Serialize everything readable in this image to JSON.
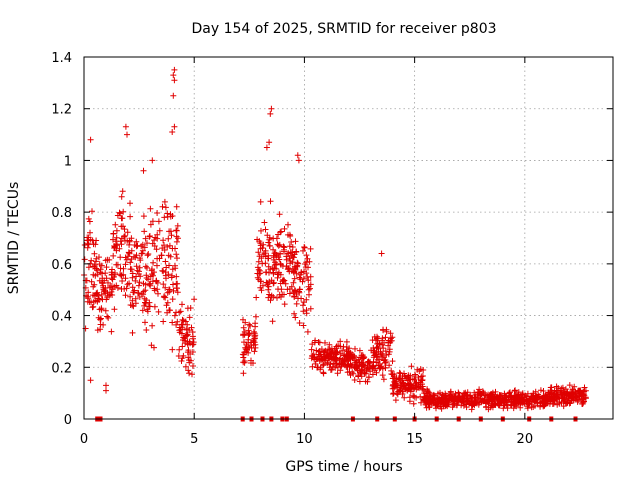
{
  "chart_data": {
    "type": "scatter",
    "title": "Day 154 of 2025, SRMTID for receiver p803",
    "xlabel": "GPS time / hours",
    "ylabel": "SRMTID / TECUs",
    "xlim": [
      0,
      24
    ],
    "ylim": [
      0,
      1.4
    ],
    "xticks": [
      0,
      5,
      10,
      15,
      20
    ],
    "xtick_labels": [
      "0",
      "5",
      "10",
      "15",
      "20"
    ],
    "yticks": [
      0,
      0.2,
      0.4,
      0.6,
      0.8,
      1,
      1.2,
      1.4
    ],
    "ytick_labels": [
      "0",
      "0.2",
      "0.4",
      "0.6",
      "0.8",
      "1",
      "1.2",
      "1.4"
    ],
    "grid": true,
    "series_color": "#e00000",
    "marker": "plus",
    "segments": [
      {
        "t0": 0.0,
        "t1": 0.6,
        "lo": 0.28,
        "hi": 0.85,
        "note": "dense scatter"
      },
      {
        "t0": 0.6,
        "t1": 1.3,
        "lo": 0.3,
        "hi": 0.7
      },
      {
        "t0": 1.3,
        "t1": 2.1,
        "lo": 0.32,
        "hi": 0.95
      },
      {
        "t0": 2.1,
        "t1": 3.2,
        "lo": 0.2,
        "hi": 0.9
      },
      {
        "t0": 3.2,
        "t1": 4.3,
        "lo": 0.25,
        "hi": 0.95
      },
      {
        "t0": 4.3,
        "t1": 5.0,
        "lo": 0.12,
        "hi": 0.5
      },
      {
        "t0": 7.2,
        "t1": 7.8,
        "lo": 0.15,
        "hi": 0.45
      },
      {
        "t0": 7.8,
        "t1": 8.6,
        "lo": 0.3,
        "hi": 0.9
      },
      {
        "t0": 8.6,
        "t1": 9.5,
        "lo": 0.35,
        "hi": 0.85
      },
      {
        "t0": 9.5,
        "t1": 10.3,
        "lo": 0.3,
        "hi": 0.75
      },
      {
        "t0": 10.3,
        "t1": 12.0,
        "lo": 0.15,
        "hi": 0.32
      },
      {
        "t0": 12.0,
        "t1": 13.0,
        "lo": 0.12,
        "hi": 0.3
      },
      {
        "t0": 13.0,
        "t1": 14.0,
        "lo": 0.12,
        "hi": 0.38
      },
      {
        "t0": 14.0,
        "t1": 15.4,
        "lo": 0.05,
        "hi": 0.22
      },
      {
        "t0": 15.4,
        "t1": 19.0,
        "lo": 0.03,
        "hi": 0.12
      },
      {
        "t0": 19.0,
        "t1": 21.0,
        "lo": 0.03,
        "hi": 0.12
      },
      {
        "t0": 21.0,
        "t1": 22.8,
        "lo": 0.04,
        "hi": 0.14
      }
    ],
    "notable_points": [
      {
        "x": 0.3,
        "y": 1.08
      },
      {
        "x": 0.3,
        "y": 0.15
      },
      {
        "x": 1.9,
        "y": 1.13
      },
      {
        "x": 1.95,
        "y": 1.1
      },
      {
        "x": 3.1,
        "y": 1.0
      },
      {
        "x": 2.7,
        "y": 0.96
      },
      {
        "x": 4.1,
        "y": 1.35
      },
      {
        "x": 4.05,
        "y": 1.33
      },
      {
        "x": 4.1,
        "y": 1.31
      },
      {
        "x": 4.05,
        "y": 1.25
      },
      {
        "x": 4.1,
        "y": 1.13
      },
      {
        "x": 4.0,
        "y": 1.11
      },
      {
        "x": 8.5,
        "y": 1.2
      },
      {
        "x": 8.45,
        "y": 1.18
      },
      {
        "x": 8.4,
        "y": 1.07
      },
      {
        "x": 8.3,
        "y": 1.05
      },
      {
        "x": 9.7,
        "y": 1.02
      },
      {
        "x": 9.75,
        "y": 1.0
      },
      {
        "x": 13.5,
        "y": 0.64
      },
      {
        "x": 1.0,
        "y": 0.13
      },
      {
        "x": 1.0,
        "y": 0.11
      }
    ],
    "zero_markers_x": [
      0.6,
      0.7,
      0.75,
      7.2,
      7.6,
      8.1,
      8.5,
      9.0,
      9.2,
      12.2,
      13.3,
      14.1,
      15.0,
      16.0,
      17.0,
      18.0,
      19.0,
      20.2,
      21.2,
      22.3
    ]
  }
}
